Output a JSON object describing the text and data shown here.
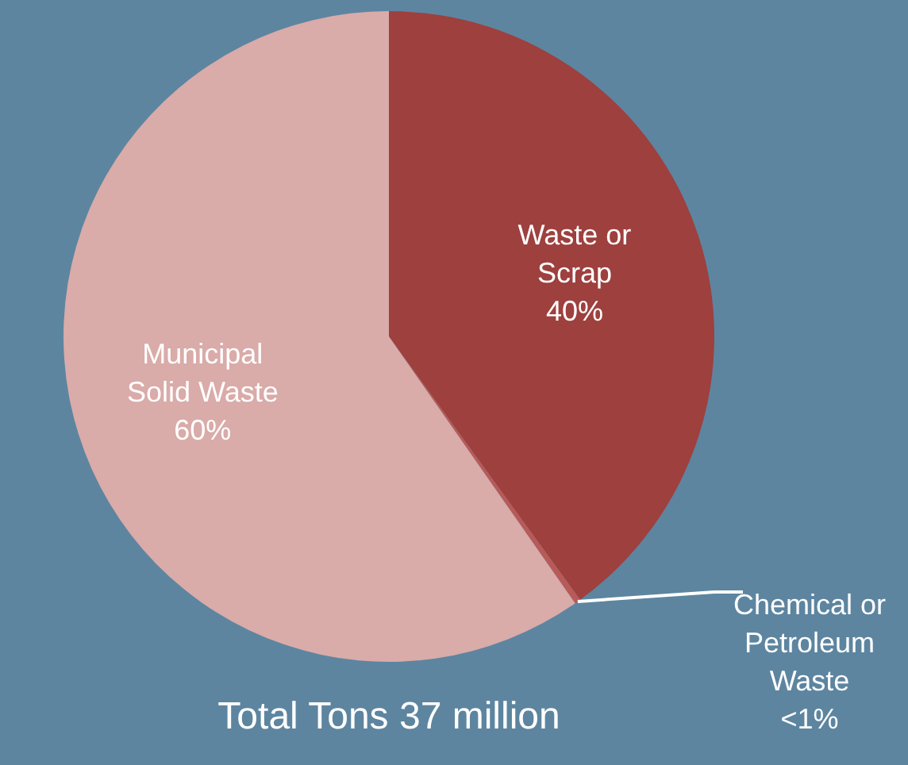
{
  "chart_data": {
    "type": "pie",
    "categories": [
      "Waste or Scrap",
      "Chemical or Petroleum Waste",
      "Municipal Solid Waste"
    ],
    "values": [
      40,
      0.3,
      59.7
    ],
    "value_labels": [
      "40%",
      "<1%",
      "60%"
    ],
    "colors": [
      "#9e403e",
      "#b85a57",
      "#d9aba9"
    ],
    "annotations": [
      "Total Tons 37 million"
    ]
  }
}
